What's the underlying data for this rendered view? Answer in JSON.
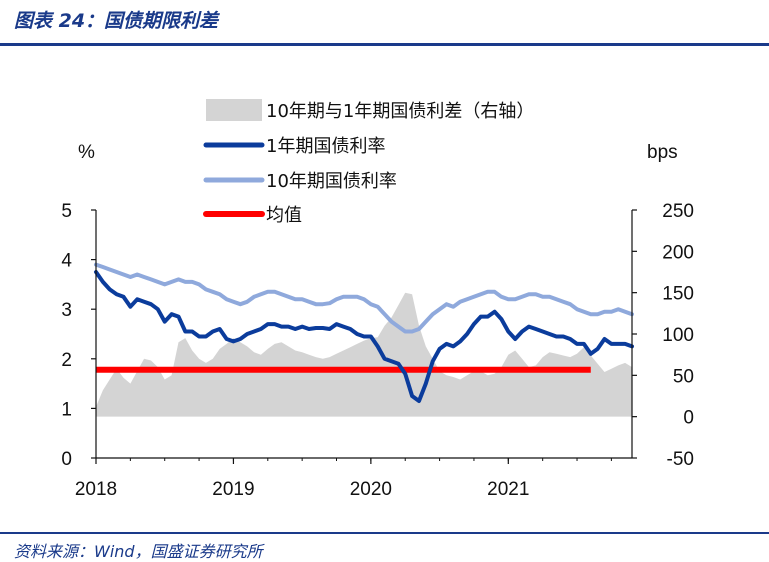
{
  "header": {
    "title": "图表 24：国债期限利差"
  },
  "footer": {
    "source": "资料来源：Wind，国盛证券研究所"
  },
  "colors": {
    "spread": "#d4d4d4",
    "y1": "#0b3c9c",
    "y10": "#8fa9dc",
    "mean": "#ff0000",
    "rule": "#1a3a8a"
  },
  "chart_data": {
    "type": "line",
    "left_axis": {
      "unit": "%",
      "ylim": [
        0,
        5
      ],
      "ticks": [
        "0",
        "1",
        "2",
        "3",
        "4",
        "5"
      ]
    },
    "right_axis": {
      "unit": "bps",
      "ylim": [
        -50,
        250
      ],
      "ticks": [
        "-50",
        "0",
        "50",
        "100",
        "150",
        "200",
        "250"
      ]
    },
    "x_axis": {
      "ticks": [
        "2018",
        "2019",
        "2020",
        "2021"
      ],
      "xlim": [
        2018.0,
        2021.9
      ]
    },
    "legend": {
      "position": "top",
      "entries": [
        "10年期与1年期国债利差（右轴）",
        "1年期国债利率",
        "10年期国债利率",
        "均值"
      ]
    },
    "series": [
      {
        "name": "10年期与1年期国债利差（右轴）",
        "type": "area",
        "axis": "right",
        "x": [
          2018.0,
          2018.05,
          2018.1,
          2018.15,
          2018.2,
          2018.25,
          2018.3,
          2018.35,
          2018.4,
          2018.45,
          2018.5,
          2018.55,
          2018.6,
          2018.65,
          2018.7,
          2018.75,
          2018.8,
          2018.85,
          2018.9,
          2018.95,
          2019.0,
          2019.05,
          2019.1,
          2019.15,
          2019.2,
          2019.25,
          2019.3,
          2019.35,
          2019.4,
          2019.45,
          2019.5,
          2019.55,
          2019.6,
          2019.65,
          2019.7,
          2019.75,
          2019.8,
          2019.85,
          2019.9,
          2019.95,
          2020.0,
          2020.05,
          2020.1,
          2020.15,
          2020.2,
          2020.25,
          2020.3,
          2020.35,
          2020.4,
          2020.45,
          2020.5,
          2020.55,
          2020.6,
          2020.65,
          2020.7,
          2020.75,
          2020.8,
          2020.85,
          2020.9,
          2020.95,
          2021.0,
          2021.05,
          2021.1,
          2021.15,
          2021.2,
          2021.25,
          2021.3,
          2021.35,
          2021.4,
          2021.45,
          2021.5,
          2021.55,
          2021.6,
          2021.65,
          2021.7,
          2021.75,
          2021.8,
          2021.85,
          2021.9
        ],
        "values": [
          12,
          32,
          45,
          58,
          47,
          40,
          55,
          70,
          68,
          60,
          45,
          50,
          90,
          95,
          80,
          70,
          65,
          70,
          82,
          88,
          95,
          90,
          85,
          78,
          75,
          82,
          88,
          90,
          85,
          80,
          78,
          75,
          72,
          70,
          72,
          76,
          80,
          84,
          88,
          92,
          95,
          96,
          110,
          120,
          135,
          150,
          148,
          110,
          85,
          70,
          55,
          50,
          48,
          45,
          50,
          55,
          55,
          50,
          52,
          60,
          75,
          80,
          70,
          60,
          62,
          72,
          78,
          76,
          74,
          72,
          76,
          84,
          74,
          64,
          54,
          58,
          62,
          65,
          60
        ]
      },
      {
        "name": "1年期国债利率",
        "type": "line",
        "axis": "left",
        "x": [
          2018.0,
          2018.05,
          2018.1,
          2018.15,
          2018.2,
          2018.25,
          2018.3,
          2018.35,
          2018.4,
          2018.45,
          2018.5,
          2018.55,
          2018.6,
          2018.65,
          2018.7,
          2018.75,
          2018.8,
          2018.85,
          2018.9,
          2018.95,
          2019.0,
          2019.05,
          2019.1,
          2019.15,
          2019.2,
          2019.25,
          2019.3,
          2019.35,
          2019.4,
          2019.45,
          2019.5,
          2019.55,
          2019.6,
          2019.65,
          2019.7,
          2019.75,
          2019.8,
          2019.85,
          2019.9,
          2019.95,
          2020.0,
          2020.05,
          2020.1,
          2020.15,
          2020.2,
          2020.25,
          2020.3,
          2020.35,
          2020.4,
          2020.45,
          2020.5,
          2020.55,
          2020.6,
          2020.65,
          2020.7,
          2020.75,
          2020.8,
          2020.85,
          2020.9,
          2020.95,
          2021.0,
          2021.05,
          2021.1,
          2021.15,
          2021.2,
          2021.25,
          2021.3,
          2021.35,
          2021.4,
          2021.45,
          2021.5,
          2021.55,
          2021.6,
          2021.65,
          2021.7,
          2021.75,
          2021.8,
          2021.85,
          2021.9
        ],
        "values": [
          3.75,
          3.55,
          3.4,
          3.3,
          3.25,
          3.05,
          3.2,
          3.15,
          3.1,
          3.0,
          2.75,
          2.9,
          2.85,
          2.55,
          2.55,
          2.45,
          2.45,
          2.55,
          2.6,
          2.4,
          2.35,
          2.4,
          2.5,
          2.55,
          2.6,
          2.7,
          2.7,
          2.65,
          2.65,
          2.6,
          2.65,
          2.6,
          2.62,
          2.62,
          2.6,
          2.7,
          2.65,
          2.6,
          2.5,
          2.45,
          2.45,
          2.25,
          2.0,
          1.95,
          1.9,
          1.7,
          1.25,
          1.15,
          1.5,
          1.95,
          2.2,
          2.3,
          2.25,
          2.35,
          2.5,
          2.7,
          2.85,
          2.85,
          2.95,
          2.8,
          2.55,
          2.4,
          2.55,
          2.65,
          2.6,
          2.55,
          2.5,
          2.45,
          2.45,
          2.4,
          2.3,
          2.3,
          2.1,
          2.2,
          2.4,
          2.3,
          2.3,
          2.3,
          2.25
        ]
      },
      {
        "name": "10年期国债利率",
        "type": "line",
        "axis": "left",
        "x": [
          2018.0,
          2018.05,
          2018.1,
          2018.15,
          2018.2,
          2018.25,
          2018.3,
          2018.35,
          2018.4,
          2018.45,
          2018.5,
          2018.55,
          2018.6,
          2018.65,
          2018.7,
          2018.75,
          2018.8,
          2018.85,
          2018.9,
          2018.95,
          2019.0,
          2019.05,
          2019.1,
          2019.15,
          2019.2,
          2019.25,
          2019.3,
          2019.35,
          2019.4,
          2019.45,
          2019.5,
          2019.55,
          2019.6,
          2019.65,
          2019.7,
          2019.75,
          2019.8,
          2019.85,
          2019.9,
          2019.95,
          2020.0,
          2020.05,
          2020.1,
          2020.15,
          2020.2,
          2020.25,
          2020.3,
          2020.35,
          2020.4,
          2020.45,
          2020.5,
          2020.55,
          2020.6,
          2020.65,
          2020.7,
          2020.75,
          2020.8,
          2020.85,
          2020.9,
          2020.95,
          2021.0,
          2021.05,
          2021.1,
          2021.15,
          2021.2,
          2021.25,
          2021.3,
          2021.35,
          2021.4,
          2021.45,
          2021.5,
          2021.55,
          2021.6,
          2021.65,
          2021.7,
          2021.75,
          2021.8,
          2021.85,
          2021.9
        ],
        "values": [
          3.9,
          3.85,
          3.8,
          3.75,
          3.7,
          3.65,
          3.7,
          3.65,
          3.6,
          3.55,
          3.5,
          3.55,
          3.6,
          3.55,
          3.55,
          3.5,
          3.4,
          3.35,
          3.3,
          3.2,
          3.15,
          3.1,
          3.15,
          3.25,
          3.3,
          3.35,
          3.35,
          3.3,
          3.25,
          3.2,
          3.2,
          3.15,
          3.1,
          3.1,
          3.12,
          3.2,
          3.25,
          3.25,
          3.25,
          3.2,
          3.1,
          3.05,
          2.9,
          2.75,
          2.65,
          2.55,
          2.55,
          2.6,
          2.75,
          2.9,
          3.0,
          3.1,
          3.05,
          3.15,
          3.2,
          3.25,
          3.3,
          3.35,
          3.35,
          3.25,
          3.2,
          3.2,
          3.25,
          3.3,
          3.3,
          3.25,
          3.25,
          3.2,
          3.15,
          3.1,
          3.0,
          2.95,
          2.9,
          2.9,
          2.95,
          2.95,
          3.0,
          2.95,
          2.9
        ]
      },
      {
        "name": "均值",
        "type": "line",
        "axis": "left",
        "x": [
          2018.0,
          2021.6
        ],
        "values": [
          1.78,
          1.78
        ]
      }
    ]
  }
}
